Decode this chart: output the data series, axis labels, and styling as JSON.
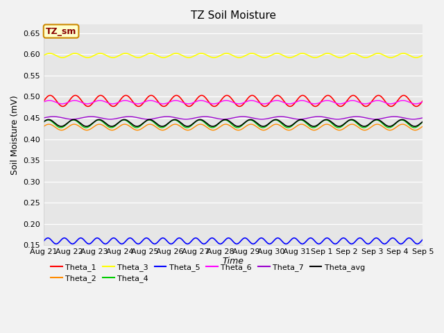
{
  "title": "TZ Soil Moisture",
  "xlabel": "Time",
  "ylabel": "Soil Moisture (mV)",
  "ylim": [
    0.15,
    0.67
  ],
  "x_tick_labels": [
    "Aug 21",
    "Aug 22",
    "Aug 23",
    "Aug 24",
    "Aug 25",
    "Aug 26",
    "Aug 27",
    "Aug 28",
    "Aug 29",
    "Aug 30",
    "Aug 31",
    "Sep 1",
    "Sep 2",
    "Sep 3",
    "Sep 4",
    "Sep 5"
  ],
  "series": [
    {
      "name": "Theta_1",
      "color": "#ff0000",
      "base": 0.49,
      "amp": 0.013,
      "period": 1.0,
      "phase": 0.0,
      "lw": 1.2
    },
    {
      "name": "Theta_2",
      "color": "#ff8c00",
      "base": 0.428,
      "amp": 0.007,
      "period": 1.0,
      "phase": 0.3,
      "lw": 1.0
    },
    {
      "name": "Theta_3",
      "color": "#ffff00",
      "base": 0.597,
      "amp": 0.005,
      "period": 1.0,
      "phase": 0.1,
      "lw": 1.2
    },
    {
      "name": "Theta_4",
      "color": "#00cc00",
      "base": 0.436,
      "amp": 0.009,
      "period": 1.0,
      "phase": 0.5,
      "lw": 1.0
    },
    {
      "name": "Theta_5",
      "color": "#0000ff",
      "base": 0.16,
      "amp": 0.007,
      "period": 0.65,
      "phase": 0.0,
      "lw": 1.2
    },
    {
      "name": "Theta_6",
      "color": "#ff00ff",
      "base": 0.487,
      "amp": 0.004,
      "period": 1.0,
      "phase": 0.2,
      "lw": 1.0
    },
    {
      "name": "Theta_7",
      "color": "#9900cc",
      "base": 0.45,
      "amp": 0.003,
      "period": 1.5,
      "phase": 0.0,
      "lw": 1.0
    },
    {
      "name": "Theta_avg",
      "color": "#000000",
      "base": 0.438,
      "amp": 0.008,
      "period": 1.0,
      "phase": 0.4,
      "lw": 1.2
    }
  ],
  "legend_box_label": "TZ_sm",
  "legend_box_facecolor": "#ffffcc",
  "legend_box_edgecolor": "#cc8800",
  "plot_bg_color": "#e6e6e6",
  "fig_bg_color": "#f2f2f2",
  "title_fontsize": 11,
  "axis_label_fontsize": 9,
  "tick_fontsize": 8,
  "legend_fontsize": 8
}
